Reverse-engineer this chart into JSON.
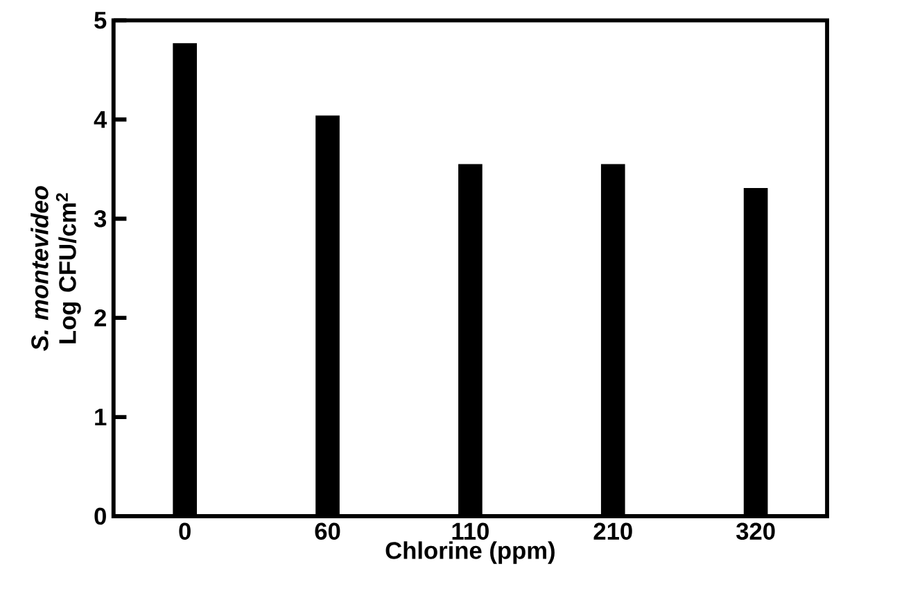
{
  "chart_data": {
    "type": "bar",
    "xlabel": "Chlorine (ppm)",
    "ylabel": "*S. montevideo* Log CFU/cm$^{2}$",
    "categories": [
      "0",
      "60",
      "110",
      "210",
      "320"
    ],
    "values": [
      4.77,
      4.04,
      3.55,
      3.55,
      3.31
    ],
    "color": "#000000",
    "ylim": [
      0,
      5
    ],
    "yticks": [
      0,
      1,
      2,
      3,
      4,
      5
    ],
    "grid": false
  }
}
